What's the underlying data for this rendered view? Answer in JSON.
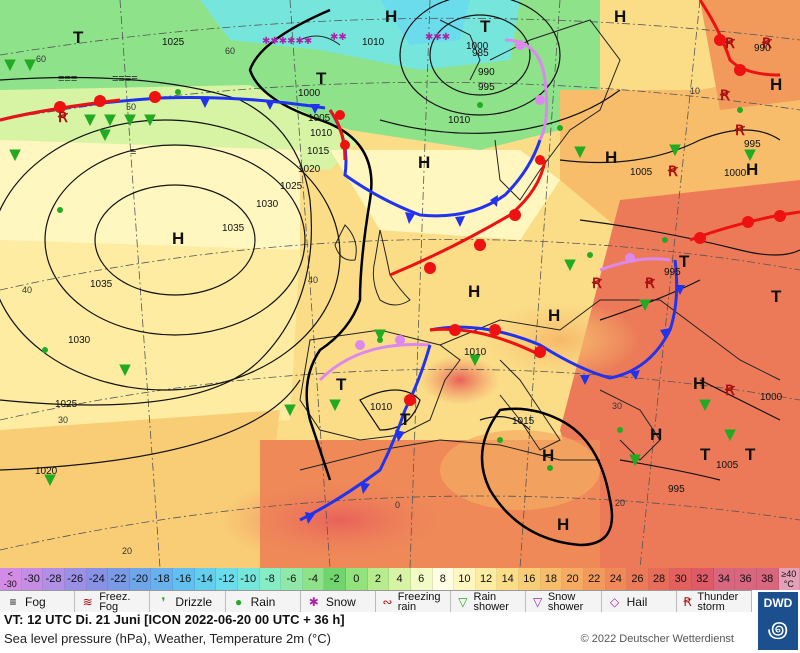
{
  "map": {
    "pressure_centers": [
      {
        "type": "H"
      },
      {
        "type": "T"
      },
      {
        "type": "H"
      },
      {
        "type": "T"
      },
      {
        "type": "H"
      },
      {
        "type": "T"
      },
      {
        "type": "H"
      },
      {
        "type": "H"
      },
      {
        "type": "H"
      },
      {
        "type": "H"
      },
      {
        "type": "H"
      },
      {
        "type": "T"
      },
      {
        "type": "T"
      },
      {
        "type": "T"
      },
      {
        "type": "H"
      },
      {
        "type": "H"
      },
      {
        "type": "T"
      },
      {
        "type": "H"
      },
      {
        "type": "H"
      },
      {
        "type": "T"
      },
      {
        "type": "H"
      },
      {
        "type": "T"
      }
    ],
    "isobar_labels": [
      "1025",
      "1010",
      "985",
      "990",
      "995",
      "1000",
      "1005",
      "1010",
      "1015",
      "1020",
      "1025",
      "1030",
      "1035",
      "1035",
      "1030",
      "1025",
      "1020",
      "1000",
      "995",
      "1000",
      "995",
      "990",
      "1005",
      "1000",
      "1005",
      "1010",
      "1010",
      "1010",
      "1015",
      "995"
    ],
    "lat_lon_labels": [
      "60",
      "60",
      "50",
      "40",
      "40",
      "30",
      "30",
      "20",
      "20",
      "10",
      "0"
    ],
    "colors": {
      "front_cold": "#2233ee",
      "front_warm": "#ee1111",
      "front_occluded": "#dd88ee"
    }
  },
  "temperature_scale": {
    "below_label": "< -30",
    "above_label": "≥40 °C",
    "values": [
      "-30",
      "-28",
      "-26",
      "-24",
      "-22",
      "-20",
      "-18",
      "-16",
      "-14",
      "-12",
      "-10",
      "-8",
      "-6",
      "-4",
      "-2",
      "0",
      "2",
      "4",
      "6",
      "8",
      "10",
      "12",
      "14",
      "16",
      "18",
      "20",
      "22",
      "24",
      "26",
      "28",
      "30",
      "32",
      "34",
      "36",
      "38"
    ],
    "colors": [
      "#d28ce6",
      "#c48de6",
      "#b08fe6",
      "#9a90e6",
      "#8792e6",
      "#7a9ae6",
      "#6fa6ea",
      "#67b2ee",
      "#62c0f0",
      "#63ceee",
      "#6bdceb",
      "#76e6dc",
      "#86ecc4",
      "#8fe8a8",
      "#8ee28a",
      "#6ed66c",
      "#92e27e",
      "#b6ec8e",
      "#d6f4a4",
      "#f2fbc6",
      "#fefee4",
      "#fff6c0",
      "#fdeca2",
      "#fbdd88",
      "#f9cd76",
      "#f7bd6a",
      "#f5ab62",
      "#f2995c",
      "#ef8a58",
      "#ec7a58",
      "#e76c5a",
      "#e2605e",
      "#dd5a66",
      "#d8667e"
    ]
  },
  "legend": {
    "items": [
      {
        "icon": "fog-icon",
        "glyph": "≡",
        "label": "Fog"
      },
      {
        "icon": "freezing-fog-icon",
        "glyph": "≋",
        "label": "Freez. Fog"
      },
      {
        "icon": "drizzle-icon",
        "glyph": "❜",
        "label": "Drizzle"
      },
      {
        "icon": "rain-icon",
        "glyph": "●",
        "label": "Rain"
      },
      {
        "icon": "snow-icon",
        "glyph": "✱",
        "label": "Snow"
      },
      {
        "icon": "freezing-rain-icon",
        "glyph": "∾",
        "label": "Freezing rain"
      },
      {
        "icon": "rain-shower-icon",
        "glyph": "▽",
        "label": "Rain shower"
      },
      {
        "icon": "snow-shower-icon",
        "glyph": "▽",
        "label": "Snow shower"
      },
      {
        "icon": "hail-icon",
        "glyph": "◇",
        "label": "Hail"
      },
      {
        "icon": "thunderstorm-icon",
        "glyph": "Ꞧ",
        "label": "Thunder storm"
      }
    ]
  },
  "info": {
    "valid_time": "VT: 12 UTC Di.  21 Juni [ICON 2022-06-20  00 UTC + 36 h]",
    "description": "Sea level pressure (hPa), Weather, Temperature 2m (°C)",
    "copyright": "© 2022 Deutscher Wetterdienst",
    "logo_text": "DWD"
  }
}
